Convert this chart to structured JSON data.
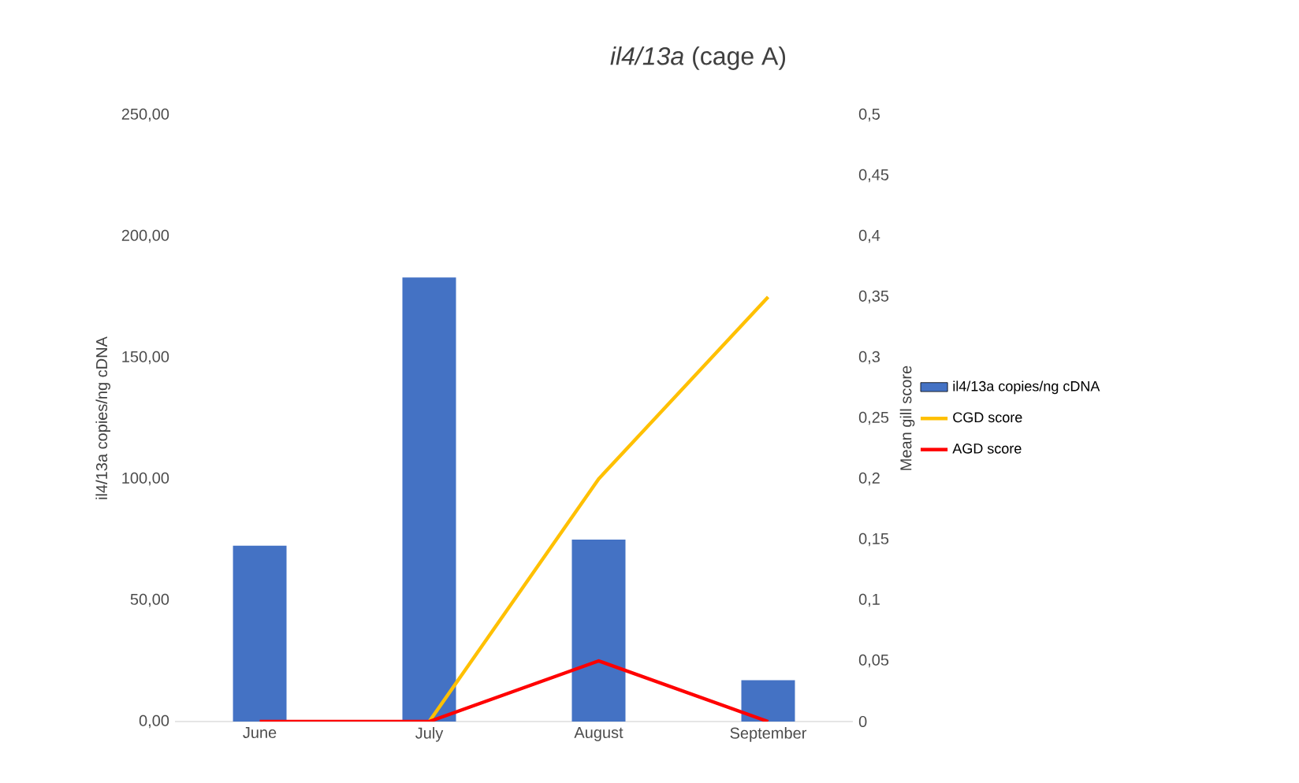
{
  "chart_data": {
    "type": "bar",
    "title": "*il4/13a* (cage A)",
    "ylabel": "il4/13a copies/ng cDNA",
    "y2label": "Mean gill score",
    "categories": [
      "June",
      "July",
      "August",
      "September"
    ],
    "series": [
      {
        "name": "il4/13a copies/ng cDNA",
        "color": "#4472c4",
        "values": [
          72.5,
          183,
          75,
          17
        ]
      },
      {
        "name": "CGD score",
        "type": "line",
        "axis": "y2",
        "color": "#ffc000",
        "values": [
          null,
          0,
          0.2,
          0.35
        ]
      },
      {
        "name": "AGD score",
        "type": "line",
        "axis": "y2",
        "color": "#ff0000",
        "values": [
          0,
          0,
          0.05,
          0
        ]
      }
    ],
    "ylim": [
      0,
      250
    ],
    "yticks": [
      {
        "value": 0,
        "label": "0,00"
      },
      {
        "value": 50,
        "label": "50,00"
      },
      {
        "value": 100,
        "label": "100,00"
      },
      {
        "value": 150,
        "label": "150,00"
      },
      {
        "value": 200,
        "label": "200,00"
      },
      {
        "value": 250,
        "label": "250,00"
      }
    ],
    "y2lim": [
      0,
      0.5
    ],
    "y2ticks": [
      0,
      {
        "value": 0.05,
        "label": "0,05"
      },
      {
        "value": 0.1,
        "label": "0,1"
      },
      {
        "value": 0.15,
        "label": "0,15"
      },
      {
        "value": 0.2,
        "label": "0,2"
      },
      {
        "value": 0.25,
        "label": "0,25"
      },
      {
        "value": 0.3,
        "label": "0,3"
      },
      {
        "value": 0.35,
        "label": "0,35"
      },
      {
        "value": 0.4,
        "label": "0,4"
      },
      {
        "value": 0.45,
        "label": "0,45"
      },
      {
        "value": 0.5,
        "label": "0,5"
      }
    ],
    "legend": "right"
  }
}
